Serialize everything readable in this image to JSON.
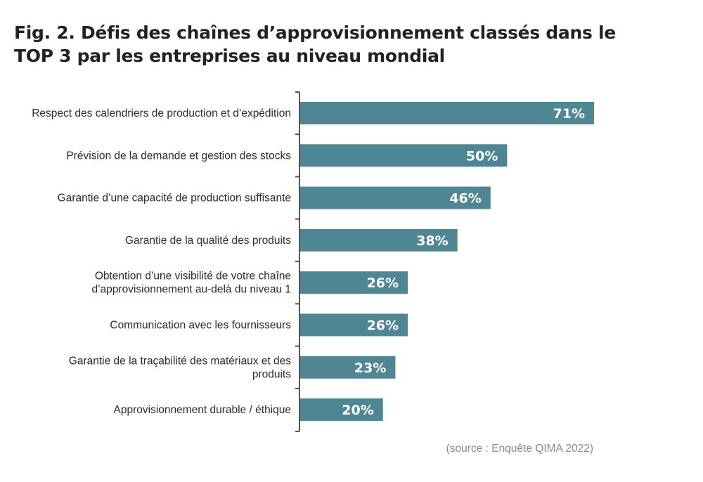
{
  "title": "Fig. 2. Défis des chaînes d’approvisionnement classés dans le TOP 3 par les entreprises au niveau mondial",
  "source": "(source : Enquête QIMA 2022)",
  "colors": {
    "bar": "#4f8694",
    "value_text": "#ffffff",
    "axis": "#555555"
  },
  "chart_data": {
    "type": "bar",
    "orientation": "horizontal",
    "categories": [
      [
        "Respect des calendriers de production et d’expédition"
      ],
      [
        "Prévision de la demande et gestion des stocks"
      ],
      [
        "Garantie d’une capacité de production suffisante"
      ],
      [
        "Garantie de la qualité des produits"
      ],
      [
        "Obtention d’une visibilité de votre chaîne",
        "d’approvisionnement au-delà du niveau 1"
      ],
      [
        "Communication avec les fournisseurs"
      ],
      [
        "Garantie de la traçabilité des matériaux et des",
        "produits"
      ],
      [
        "Approvisionnement durable / éthique"
      ]
    ],
    "values": [
      71,
      50,
      46,
      38,
      26,
      26,
      23,
      20
    ],
    "value_labels": [
      "71%",
      "50%",
      "46%",
      "38%",
      "26%",
      "26%",
      "23%",
      "20%"
    ],
    "xlim": [
      0,
      100
    ],
    "grid": false,
    "legend": "none"
  }
}
